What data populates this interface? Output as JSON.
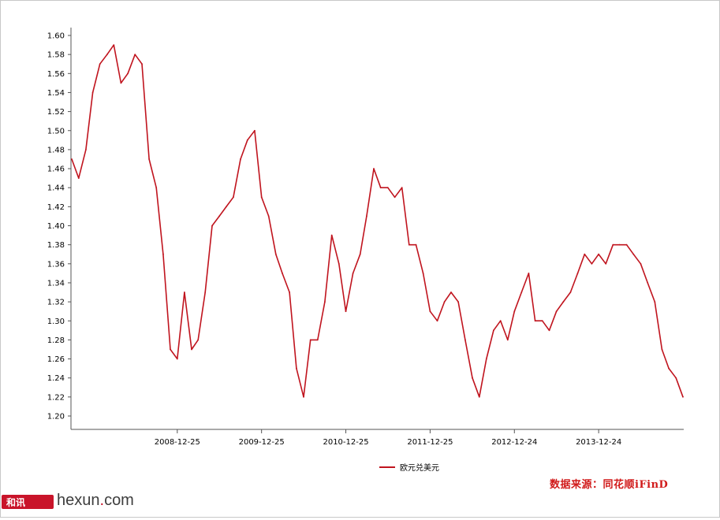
{
  "chart_data": {
    "type": "line",
    "title": "",
    "xlabel": "",
    "ylabel": "",
    "ylim": [
      1.2,
      1.6
    ],
    "yticks": [
      "1.20",
      "1.22",
      "1.24",
      "1.26",
      "1.28",
      "1.30",
      "1.32",
      "1.34",
      "1.36",
      "1.38",
      "1.40",
      "1.42",
      "1.44",
      "1.46",
      "1.48",
      "1.50",
      "1.52",
      "1.54",
      "1.56",
      "1.58",
      "1.60"
    ],
    "xticks": [
      "2008-12-25",
      "2009-12-25",
      "2010-12-25",
      "2011-12-25",
      "2012-12-24",
      "2013-12-24"
    ],
    "grid": false,
    "legend_position": "bottom-center",
    "line_color": "#c0141e",
    "series": [
      {
        "name": "欧元兑美元",
        "x": [
          "2007-09-25",
          "2007-10-25",
          "2007-11-25",
          "2007-12-25",
          "2008-01-25",
          "2008-02-25",
          "2008-03-25",
          "2008-04-25",
          "2008-05-25",
          "2008-06-25",
          "2008-07-25",
          "2008-08-25",
          "2008-09-25",
          "2008-10-25",
          "2008-11-25",
          "2008-12-25",
          "2009-01-25",
          "2009-02-25",
          "2009-03-25",
          "2009-04-25",
          "2009-05-25",
          "2009-06-25",
          "2009-07-25",
          "2009-08-25",
          "2009-09-25",
          "2009-10-25",
          "2009-11-25",
          "2009-12-25",
          "2010-01-25",
          "2010-02-25",
          "2010-03-25",
          "2010-04-25",
          "2010-05-25",
          "2010-06-25",
          "2010-07-25",
          "2010-08-25",
          "2010-09-25",
          "2010-10-25",
          "2010-11-25",
          "2010-12-25",
          "2011-01-25",
          "2011-02-25",
          "2011-03-25",
          "2011-04-25",
          "2011-05-25",
          "2011-06-25",
          "2011-07-25",
          "2011-08-25",
          "2011-09-25",
          "2011-10-25",
          "2011-11-25",
          "2011-12-25",
          "2012-01-25",
          "2012-02-25",
          "2012-03-25",
          "2012-04-25",
          "2012-05-25",
          "2012-06-25",
          "2012-07-25",
          "2012-08-25",
          "2012-09-25",
          "2012-10-25",
          "2012-11-25",
          "2012-12-24",
          "2013-01-24",
          "2013-02-24",
          "2013-03-24",
          "2013-04-24",
          "2013-05-24",
          "2013-06-24",
          "2013-07-24",
          "2013-08-24",
          "2013-09-24",
          "2013-10-24",
          "2013-11-24",
          "2013-12-24",
          "2014-01-24",
          "2014-02-24",
          "2014-03-24",
          "2014-04-24",
          "2014-05-24",
          "2014-06-24",
          "2014-07-24",
          "2014-08-24",
          "2014-09-24",
          "2014-10-24",
          "2014-11-24",
          "2014-12-24"
        ],
        "values": [
          1.47,
          1.45,
          1.48,
          1.54,
          1.57,
          1.58,
          1.59,
          1.55,
          1.56,
          1.58,
          1.57,
          1.47,
          1.44,
          1.37,
          1.27,
          1.26,
          1.33,
          1.27,
          1.28,
          1.33,
          1.4,
          1.41,
          1.42,
          1.43,
          1.47,
          1.49,
          1.5,
          1.43,
          1.41,
          1.37,
          1.35,
          1.33,
          1.25,
          1.22,
          1.28,
          1.28,
          1.32,
          1.39,
          1.36,
          1.31,
          1.35,
          1.37,
          1.41,
          1.46,
          1.44,
          1.44,
          1.43,
          1.44,
          1.38,
          1.38,
          1.35,
          1.31,
          1.3,
          1.32,
          1.33,
          1.32,
          1.28,
          1.24,
          1.22,
          1.26,
          1.29,
          1.3,
          1.28,
          1.31,
          1.33,
          1.35,
          1.3,
          1.3,
          1.29,
          1.31,
          1.32,
          1.33,
          1.35,
          1.37,
          1.36,
          1.37,
          1.36,
          1.38,
          1.38,
          1.38,
          1.37,
          1.36,
          1.34,
          1.32,
          1.27,
          1.25,
          1.24,
          1.22
        ]
      }
    ]
  },
  "source_note": "数据来源：同花顺iFinD",
  "footer": {
    "badge_text": "和讯",
    "site_text": "hexun",
    "site_dot": ".",
    "site_tld": "com"
  }
}
